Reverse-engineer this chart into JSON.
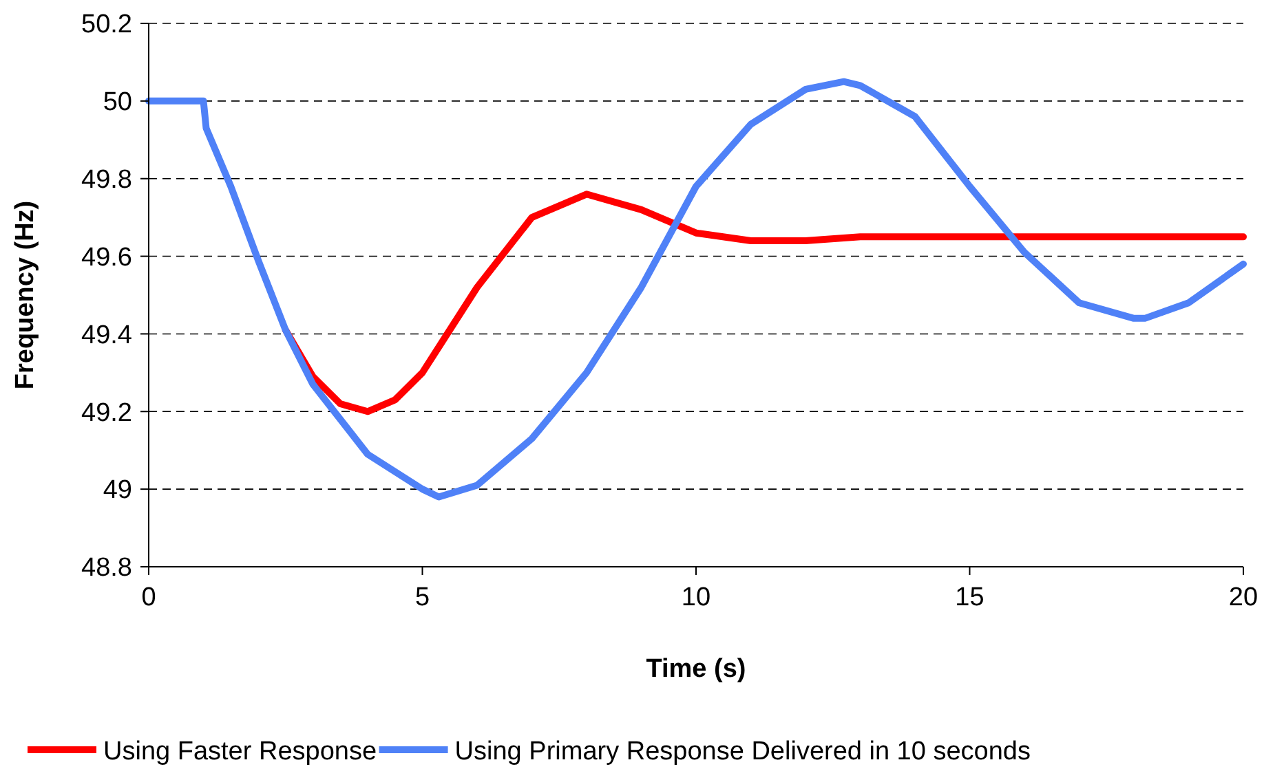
{
  "chart_data": {
    "type": "line",
    "xlabel": "Time (s)",
    "ylabel": "Frequency (Hz)",
    "xlim": [
      0,
      20
    ],
    "xticks": [
      0,
      5,
      10,
      15,
      20
    ],
    "ylim": [
      48.8,
      50.2
    ],
    "yticks": [
      {
        "value": 48.8,
        "label": "48.8"
      },
      {
        "value": 49,
        "label": "49"
      },
      {
        "value": 49.2,
        "label": "49.2"
      },
      {
        "value": 49.4,
        "label": "49.4"
      },
      {
        "value": 49.6,
        "label": "49.6"
      },
      {
        "value": 49.8,
        "label": "49.8"
      },
      {
        "value": 50,
        "label": "50"
      },
      {
        "value": 50.2,
        "label": "50.2"
      }
    ],
    "grid": "y",
    "legend": "bottom",
    "line_style": "solid",
    "series": [
      {
        "name": "Using Faster Response",
        "color": "#ff0000",
        "x": [
          2.5,
          3,
          3.5,
          4,
          4.5,
          5,
          6,
          7,
          8,
          9,
          10,
          11,
          12,
          13,
          15,
          20
        ],
        "values": [
          49.41,
          49.29,
          49.22,
          49.2,
          49.23,
          49.3,
          49.52,
          49.7,
          49.76,
          49.72,
          49.66,
          49.64,
          49.64,
          49.65,
          49.65,
          49.65
        ]
      },
      {
        "name": "Using Primary Response Delivered in 10 seconds",
        "color": "#4f81f7",
        "x": [
          0,
          1,
          1.05,
          1.5,
          2,
          2.5,
          3,
          4,
          5,
          5.3,
          6,
          7,
          8,
          9,
          10,
          11,
          12,
          12.7,
          13,
          14,
          15,
          16,
          17,
          18,
          18.2,
          19,
          20
        ],
        "values": [
          50,
          50,
          49.93,
          49.78,
          49.59,
          49.41,
          49.27,
          49.09,
          49,
          48.98,
          49.01,
          49.13,
          49.3,
          49.52,
          49.78,
          49.94,
          50.03,
          50.05,
          50.04,
          49.96,
          49.78,
          49.61,
          49.48,
          49.44,
          49.44,
          49.48,
          49.58
        ]
      }
    ]
  }
}
